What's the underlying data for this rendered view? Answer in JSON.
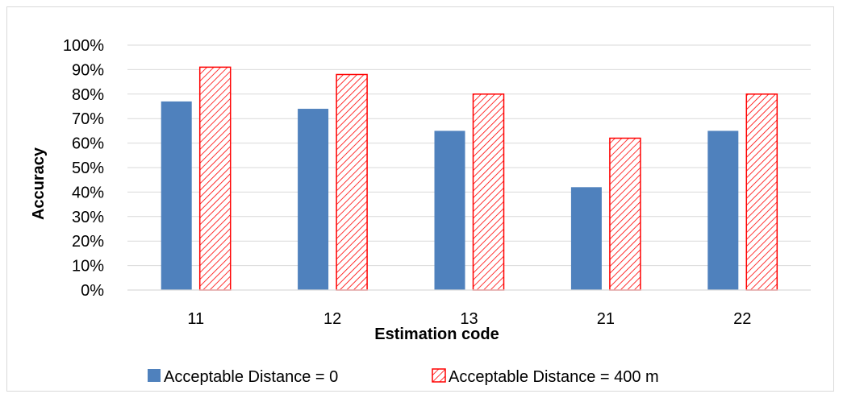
{
  "chart_data": {
    "type": "bar",
    "categories": [
      "11",
      "12",
      "13",
      "21",
      "22"
    ],
    "series": [
      {
        "name": "Acceptable Distance = 0",
        "values": [
          77,
          74,
          65,
          42,
          65
        ],
        "color": "#4f81bd",
        "fill": "solid"
      },
      {
        "name": "Acceptable Distance = 400 m",
        "values": [
          91,
          88,
          80,
          62,
          80
        ],
        "color": "#ff0000",
        "fill": "diagonal-hatch"
      }
    ],
    "xlabel": "Estimation code",
    "ylabel": "Accuracy",
    "ylim": [
      0,
      100
    ],
    "yticks": [
      "0%",
      "10%",
      "20%",
      "30%",
      "40%",
      "50%",
      "60%",
      "70%",
      "80%",
      "90%",
      "100%"
    ],
    "grid": true,
    "legend_position": "bottom"
  }
}
